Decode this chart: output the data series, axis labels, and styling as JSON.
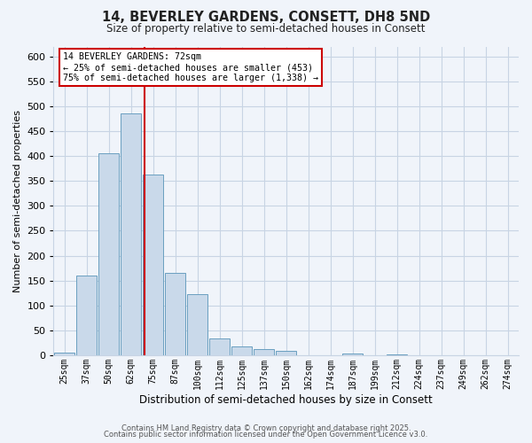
{
  "title": "14, BEVERLEY GARDENS, CONSETT, DH8 5ND",
  "subtitle": "Size of property relative to semi-detached houses in Consett",
  "xlabel": "Distribution of semi-detached houses by size in Consett",
  "ylabel": "Number of semi-detached properties",
  "bar_labels": [
    "25sqm",
    "37sqm",
    "50sqm",
    "62sqm",
    "75sqm",
    "87sqm",
    "100sqm",
    "112sqm",
    "125sqm",
    "137sqm",
    "150sqm",
    "162sqm",
    "174sqm",
    "187sqm",
    "199sqm",
    "212sqm",
    "224sqm",
    "237sqm",
    "249sqm",
    "262sqm",
    "274sqm"
  ],
  "bar_values": [
    5,
    160,
    405,
    485,
    362,
    165,
    123,
    34,
    18,
    13,
    8,
    0,
    0,
    3,
    0,
    2,
    0,
    0,
    0,
    0,
    0
  ],
  "bar_color": "#c9d9ea",
  "bar_edge_color": "#6a9fc0",
  "annotation_title": "14 BEVERLEY GARDENS: 72sqm",
  "annotation_line1": "← 25% of semi-detached houses are smaller (453)",
  "annotation_line2": "75% of semi-detached houses are larger (1,338) →",
  "annotation_box_color": "#ffffff",
  "annotation_box_edge": "#cc0000",
  "vline_color": "#cc0000",
  "ylim": [
    0,
    620
  ],
  "yticks": [
    0,
    50,
    100,
    150,
    200,
    250,
    300,
    350,
    400,
    450,
    500,
    550,
    600
  ],
  "footer1": "Contains HM Land Registry data © Crown copyright and database right 2025.",
  "footer2": "Contains public sector information licensed under the Open Government Licence v3.0.",
  "bg_color": "#f0f4fa",
  "grid_color": "#c8d4e4",
  "title_fontsize": 10.5,
  "subtitle_fontsize": 8.5
}
